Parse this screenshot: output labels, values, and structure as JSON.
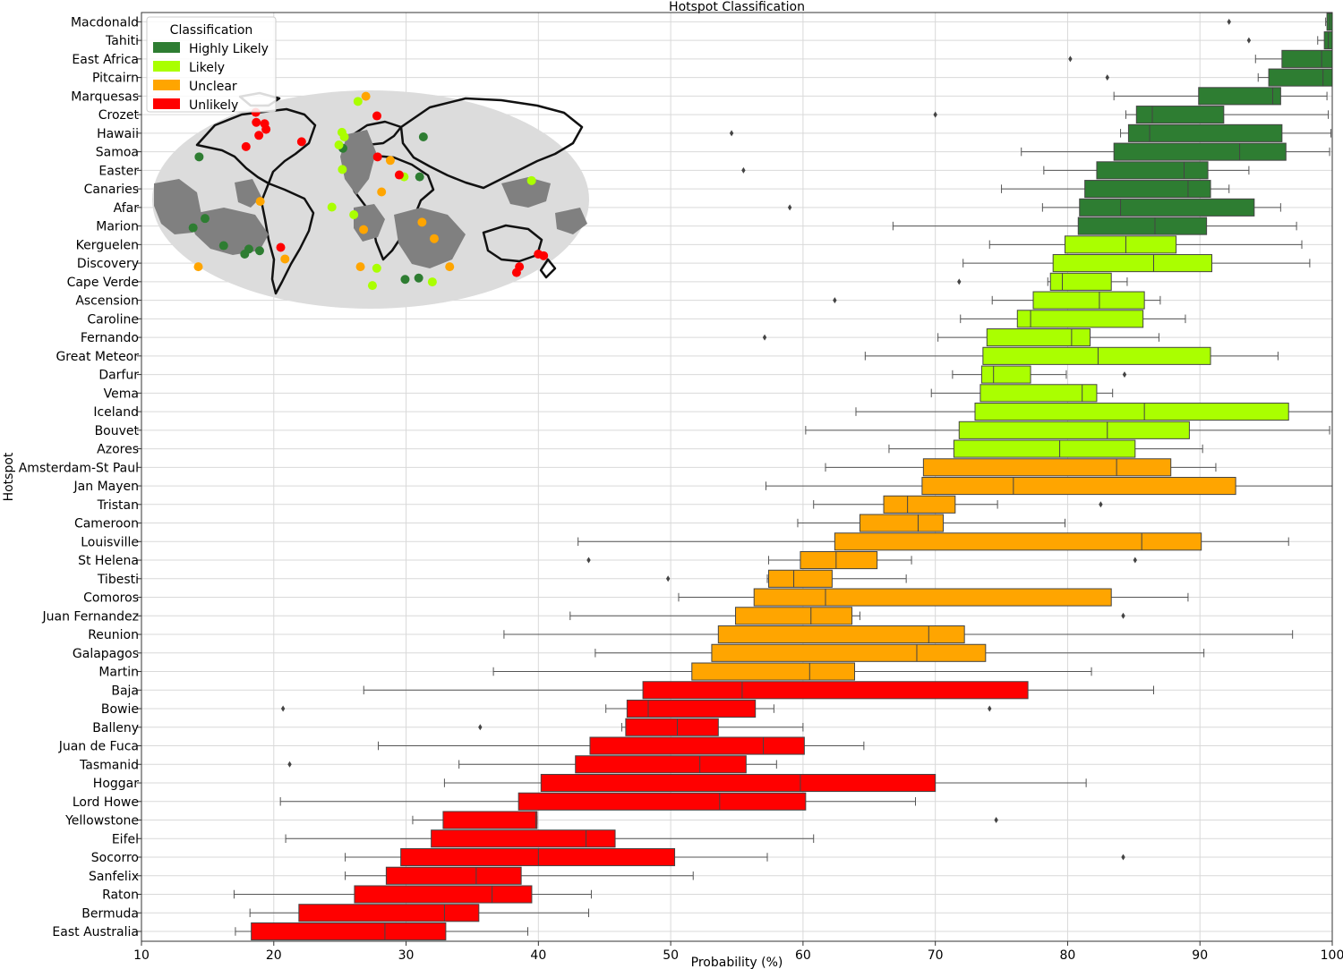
{
  "chart_data": {
    "type": "boxplot-horizontal",
    "title": "Hotspot Classification",
    "xlabel": "Probability (%)",
    "ylabel": "Hotspot",
    "xlim": [
      10,
      100
    ],
    "xticks": [
      10,
      20,
      30,
      40,
      50,
      60,
      70,
      80,
      90,
      100
    ],
    "grid": true,
    "legend": {
      "title": "Classification",
      "placement": "top-left",
      "entries": [
        {
          "label": "Highly Likely",
          "color": "#2e7d32"
        },
        {
          "label": "Likely",
          "color": "#aaff00"
        },
        {
          "label": "Unclear",
          "color": "#ffa500"
        },
        {
          "label": "Unlikely",
          "color": "#ff0000"
        }
      ]
    },
    "inset": "world-map",
    "inset_points": [
      {
        "lon": -150,
        "lat": 23,
        "class": "Highly Likely"
      },
      {
        "lon": -138,
        "lat": -10,
        "class": "Highly Likely"
      },
      {
        "lon": -150,
        "lat": -15,
        "class": "Highly Likely"
      },
      {
        "lon": -130,
        "lat": -25,
        "class": "Highly Likely"
      },
      {
        "lon": -109,
        "lat": -27,
        "class": "Highly Likely"
      },
      {
        "lon": -25,
        "lat": 28,
        "class": "Highly Likely"
      },
      {
        "lon": 50,
        "lat": 35,
        "class": "Highly Likely"
      },
      {
        "lon": 41,
        "lat": 12,
        "class": "Highly Likely"
      },
      {
        "lon": 37,
        "lat": -47,
        "class": "Highly Likely"
      },
      {
        "lon": 51,
        "lat": -46,
        "class": "Highly Likely"
      },
      {
        "lon": -115,
        "lat": -30,
        "class": "Highly Likely"
      },
      {
        "lon": -100,
        "lat": -28,
        "class": "Highly Likely"
      },
      {
        "lon": -18,
        "lat": 64,
        "class": "Likely"
      },
      {
        "lon": -28,
        "lat": 38,
        "class": "Likely"
      },
      {
        "lon": -24,
        "lat": 16,
        "class": "Likely"
      },
      {
        "lon": -14,
        "lat": -8,
        "class": "Likely"
      },
      {
        "lon": -32,
        "lat": -4,
        "class": "Likely"
      },
      {
        "lon": -29,
        "lat": 30,
        "class": "Likely"
      },
      {
        "lon": 28,
        "lat": 12,
        "class": "Likely"
      },
      {
        "lon": 134,
        "lat": 10,
        "class": "Likely"
      },
      {
        "lon": 6,
        "lat": -39,
        "class": "Likely"
      },
      {
        "lon": 2,
        "lat": -52,
        "class": "Likely"
      },
      {
        "lon": 68,
        "lat": -49,
        "class": "Likely"
      },
      {
        "lon": -25,
        "lat": 35,
        "class": "Likely"
      },
      {
        "lon": -8,
        "lat": 71,
        "class": "Unclear"
      },
      {
        "lon": -10,
        "lat": -38,
        "class": "Unclear"
      },
      {
        "lon": 9,
        "lat": 4,
        "class": "Unclear"
      },
      {
        "lon": -6,
        "lat": -16,
        "class": "Unclear"
      },
      {
        "lon": 17,
        "lat": 21,
        "class": "Unclear"
      },
      {
        "lon": 43,
        "lat": -12,
        "class": "Unclear"
      },
      {
        "lon": 55,
        "lat": -21,
        "class": "Unclear"
      },
      {
        "lon": 77,
        "lat": -38,
        "class": "Unclear"
      },
      {
        "lon": -80,
        "lat": -33,
        "class": "Unclear"
      },
      {
        "lon": -91,
        "lat": -1,
        "class": "Unclear"
      },
      {
        "lon": -168,
        "lat": -38,
        "class": "Unclear"
      },
      {
        "lon": -120,
        "lat": 45,
        "class": "Unlikely"
      },
      {
        "lon": -110,
        "lat": 44,
        "class": "Unlikely"
      },
      {
        "lon": -107,
        "lat": 36,
        "class": "Unlikely"
      },
      {
        "lon": -113,
        "lat": 29,
        "class": "Unlikely"
      },
      {
        "lon": -134,
        "lat": 53,
        "class": "Unlikely"
      },
      {
        "lon": -64,
        "lat": 32,
        "class": "Unlikely"
      },
      {
        "lon": 7,
        "lat": 50,
        "class": "Unlikely"
      },
      {
        "lon": 6,
        "lat": 23,
        "class": "Unlikely"
      },
      {
        "lon": 24,
        "lat": 13,
        "class": "Unlikely"
      },
      {
        "lon": -80,
        "lat": -26,
        "class": "Unlikely"
      },
      {
        "lon": 145,
        "lat": -38,
        "class": "Unlikely"
      },
      {
        "lon": 159,
        "lat": -31,
        "class": "Unlikely"
      },
      {
        "lon": 153,
        "lat": -30,
        "class": "Unlikely"
      },
      {
        "lon": 148,
        "lat": -42,
        "class": "Unlikely"
      },
      {
        "lon": -104,
        "lat": 40,
        "class": "Unlikely"
      }
    ],
    "series": [
      {
        "category": "Macdonald",
        "class": "Highly Likely",
        "whislo": 99.5,
        "q1": 99.6,
        "med": 99.8,
        "q3": 100,
        "whishi": 100,
        "fliers": [
          92.2
        ]
      },
      {
        "category": "Tahiti",
        "class": "Highly Likely",
        "whislo": 98.9,
        "q1": 99.4,
        "med": 99.7,
        "q3": 100,
        "whishi": 100,
        "fliers": [
          93.7
        ]
      },
      {
        "category": "East Africa",
        "class": "Highly Likely",
        "whislo": 94.2,
        "q1": 96.2,
        "med": 99.2,
        "q3": 100,
        "whishi": 100,
        "fliers": [
          80.2
        ]
      },
      {
        "category": "Pitcairn",
        "class": "Highly Likely",
        "whislo": 94.4,
        "q1": 95.2,
        "med": 99.3,
        "q3": 100,
        "whishi": 100,
        "fliers": [
          83
        ]
      },
      {
        "category": "Marquesas",
        "class": "Highly Likely",
        "whislo": 83.5,
        "q1": 89.9,
        "med": 95.5,
        "q3": 96.1,
        "whishi": 99.6,
        "fliers": []
      },
      {
        "category": "Crozet",
        "class": "Highly Likely",
        "whislo": 84.4,
        "q1": 85.2,
        "med": 86.4,
        "q3": 91.8,
        "whishi": 99.7,
        "fliers": [
          70
        ]
      },
      {
        "category": "Hawaii",
        "class": "Highly Likely",
        "whislo": 84,
        "q1": 84.6,
        "med": 86.2,
        "q3": 96.2,
        "whishi": 99.9,
        "fliers": [
          54.6
        ]
      },
      {
        "category": "Samoa",
        "class": "Highly Likely",
        "whislo": 76.5,
        "q1": 83.5,
        "med": 93,
        "q3": 96.5,
        "whishi": 99.8,
        "fliers": []
      },
      {
        "category": "Easter",
        "class": "Highly Likely",
        "whislo": 78.2,
        "q1": 82.2,
        "med": 88.8,
        "q3": 90.6,
        "whishi": 93.7,
        "fliers": [
          55.5
        ]
      },
      {
        "category": "Canaries",
        "class": "Highly Likely",
        "whislo": 75,
        "q1": 81.3,
        "med": 89.1,
        "q3": 90.8,
        "whishi": 92.2,
        "fliers": []
      },
      {
        "category": "Afar",
        "class": "Highly Likely",
        "whislo": 78.1,
        "q1": 80.9,
        "med": 84,
        "q3": 94.1,
        "whishi": 96.1,
        "fliers": [
          59
        ]
      },
      {
        "category": "Marion",
        "class": "Highly Likely",
        "whislo": 66.8,
        "q1": 80.8,
        "med": 86.6,
        "q3": 90.5,
        "whishi": 97.3,
        "fliers": []
      },
      {
        "category": "Kerguelen",
        "class": "Likely",
        "whislo": 74.1,
        "q1": 79.8,
        "med": 84.4,
        "q3": 88.2,
        "whishi": 97.7,
        "fliers": []
      },
      {
        "category": "Discovery",
        "class": "Likely",
        "whislo": 72.1,
        "q1": 78.9,
        "med": 86.5,
        "q3": 90.9,
        "whishi": 98.3,
        "fliers": []
      },
      {
        "category": "Cape Verde",
        "class": "Likely",
        "whislo": 78.5,
        "q1": 78.7,
        "med": 79.6,
        "q3": 83.3,
        "whishi": 84.5,
        "fliers": [
          71.8
        ]
      },
      {
        "category": "Ascension",
        "class": "Likely",
        "whislo": 74.3,
        "q1": 77.4,
        "med": 82.4,
        "q3": 85.8,
        "whishi": 87,
        "fliers": [
          62.4
        ]
      },
      {
        "category": "Caroline",
        "class": "Likely",
        "whislo": 71.9,
        "q1": 76.2,
        "med": 77.2,
        "q3": 85.7,
        "whishi": 88.9,
        "fliers": []
      },
      {
        "category": "Fernando",
        "class": "Likely",
        "whislo": 70.2,
        "q1": 73.9,
        "med": 80.3,
        "q3": 81.7,
        "whishi": 86.9,
        "fliers": [
          57.1
        ]
      },
      {
        "category": "Great Meteor",
        "class": "Likely",
        "whislo": 64.7,
        "q1": 73.6,
        "med": 82.3,
        "q3": 90.8,
        "whishi": 95.9,
        "fliers": []
      },
      {
        "category": "Darfur",
        "class": "Likely",
        "whislo": 71.3,
        "q1": 73.5,
        "med": 74.4,
        "q3": 77.2,
        "whishi": 79.9,
        "fliers": [
          84.3
        ]
      },
      {
        "category": "Vema",
        "class": "Likely",
        "whislo": 69.7,
        "q1": 73.4,
        "med": 81.1,
        "q3": 82.2,
        "whishi": 83.4,
        "fliers": []
      },
      {
        "category": "Iceland",
        "class": "Likely",
        "whislo": 64,
        "q1": 73,
        "med": 85.8,
        "q3": 96.7,
        "whishi": 100,
        "fliers": []
      },
      {
        "category": "Bouvet",
        "class": "Likely",
        "whislo": 60.2,
        "q1": 71.8,
        "med": 83,
        "q3": 89.2,
        "whishi": 99.8,
        "fliers": []
      },
      {
        "category": "Azores",
        "class": "Likely",
        "whislo": 66.5,
        "q1": 71.4,
        "med": 79.4,
        "q3": 85.1,
        "whishi": 90.2,
        "fliers": []
      },
      {
        "category": "Amsterdam-St Paul",
        "class": "Unclear",
        "whislo": 61.7,
        "q1": 69.1,
        "med": 83.7,
        "q3": 87.8,
        "whishi": 91.2,
        "fliers": []
      },
      {
        "category": "Jan Mayen",
        "class": "Unclear",
        "whislo": 57.2,
        "q1": 69,
        "med": 75.9,
        "q3": 92.7,
        "whishi": 100,
        "fliers": []
      },
      {
        "category": "Tristan",
        "class": "Unclear",
        "whislo": 60.8,
        "q1": 66.1,
        "med": 67.9,
        "q3": 71.5,
        "whishi": 74.7,
        "fliers": [
          82.5
        ]
      },
      {
        "category": "Cameroon",
        "class": "Unclear",
        "whislo": 59.6,
        "q1": 64.3,
        "med": 68.7,
        "q3": 70.6,
        "whishi": 79.8,
        "fliers": []
      },
      {
        "category": "Louisville",
        "class": "Unclear",
        "whislo": 43,
        "q1": 62.4,
        "med": 85.6,
        "q3": 90.1,
        "whishi": 96.7,
        "fliers": []
      },
      {
        "category": "St Helena",
        "class": "Unclear",
        "whislo": 57.4,
        "q1": 59.8,
        "med": 62.5,
        "q3": 65.6,
        "whishi": 68.2,
        "fliers": [
          43.8,
          85.1
        ]
      },
      {
        "category": "Tibesti",
        "class": "Unclear",
        "whislo": 57.3,
        "q1": 57.4,
        "med": 59.3,
        "q3": 62.2,
        "whishi": 67.8,
        "fliers": [
          49.8
        ]
      },
      {
        "category": "Comoros",
        "class": "Unclear",
        "whislo": 50.6,
        "q1": 56.3,
        "med": 61.7,
        "q3": 83.3,
        "whishi": 89.1,
        "fliers": []
      },
      {
        "category": "Juan Fernandez",
        "class": "Unclear",
        "whislo": 42.4,
        "q1": 54.9,
        "med": 60.6,
        "q3": 63.7,
        "whishi": 64.3,
        "fliers": [
          84.2
        ]
      },
      {
        "category": "Reunion",
        "class": "Unclear",
        "whislo": 37.4,
        "q1": 53.6,
        "med": 69.5,
        "q3": 72.2,
        "whishi": 97,
        "fliers": []
      },
      {
        "category": "Galapagos",
        "class": "Unclear",
        "whislo": 44.3,
        "q1": 53.1,
        "med": 68.6,
        "q3": 73.8,
        "whishi": 90.3,
        "fliers": []
      },
      {
        "category": "Martin",
        "class": "Unclear",
        "whislo": 36.6,
        "q1": 51.6,
        "med": 60.5,
        "q3": 63.9,
        "whishi": 81.8,
        "fliers": []
      },
      {
        "category": "Baja",
        "class": "Unlikely",
        "whislo": 26.8,
        "q1": 47.9,
        "med": 55.4,
        "q3": 77,
        "whishi": 86.5,
        "fliers": []
      },
      {
        "category": "Bowie",
        "class": "Unlikely",
        "whislo": 45.1,
        "q1": 46.7,
        "med": 48.3,
        "q3": 56.4,
        "whishi": 57.8,
        "fliers": [
          20.7,
          74.1
        ]
      },
      {
        "category": "Balleny",
        "class": "Unlikely",
        "whislo": 46.3,
        "q1": 46.6,
        "med": 50.5,
        "q3": 53.6,
        "whishi": 60,
        "fliers": [
          35.6
        ]
      },
      {
        "category": "Juan de Fuca",
        "class": "Unlikely",
        "whislo": 27.9,
        "q1": 43.9,
        "med": 57,
        "q3": 60.1,
        "whishi": 64.6,
        "fliers": []
      },
      {
        "category": "Tasmanid",
        "class": "Unlikely",
        "whislo": 34,
        "q1": 42.8,
        "med": 52.2,
        "q3": 55.7,
        "whishi": 58,
        "fliers": [
          21.2
        ]
      },
      {
        "category": "Hoggar",
        "class": "Unlikely",
        "whislo": 32.9,
        "q1": 40.2,
        "med": 59.8,
        "q3": 70,
        "whishi": 81.4,
        "fliers": []
      },
      {
        "category": "Lord Howe",
        "class": "Unlikely",
        "whislo": 20.5,
        "q1": 38.5,
        "med": 53.7,
        "q3": 60.2,
        "whishi": 68.5,
        "fliers": []
      },
      {
        "category": "Yellowstone",
        "class": "Unlikely",
        "whislo": 30.5,
        "q1": 32.8,
        "med": 39.8,
        "q3": 39.9,
        "whishi": 39.9,
        "fliers": [
          74.6
        ]
      },
      {
        "category": "Eifel",
        "class": "Unlikely",
        "whislo": 20.9,
        "q1": 31.9,
        "med": 43.6,
        "q3": 45.8,
        "whishi": 60.8,
        "fliers": []
      },
      {
        "category": "Socorro",
        "class": "Unlikely",
        "whislo": 25.4,
        "q1": 29.6,
        "med": 40,
        "q3": 50.3,
        "whishi": 57.3,
        "fliers": [
          84.2
        ]
      },
      {
        "category": "Sanfelix",
        "class": "Unlikely",
        "whislo": 25.4,
        "q1": 28.5,
        "med": 35.3,
        "q3": 38.7,
        "whishi": 51.7,
        "fliers": []
      },
      {
        "category": "Raton",
        "class": "Unlikely",
        "whislo": 17,
        "q1": 26.1,
        "med": 36.5,
        "q3": 39.5,
        "whishi": 44,
        "fliers": []
      },
      {
        "category": "Bermuda",
        "class": "Unlikely",
        "whislo": 18.2,
        "q1": 21.9,
        "med": 32.9,
        "q3": 35.5,
        "whishi": 43.8,
        "fliers": []
      },
      {
        "category": "East Australia",
        "class": "Unlikely",
        "whislo": 17.1,
        "q1": 18.3,
        "med": 28.4,
        "q3": 33,
        "whishi": 39.2,
        "fliers": []
      }
    ]
  }
}
